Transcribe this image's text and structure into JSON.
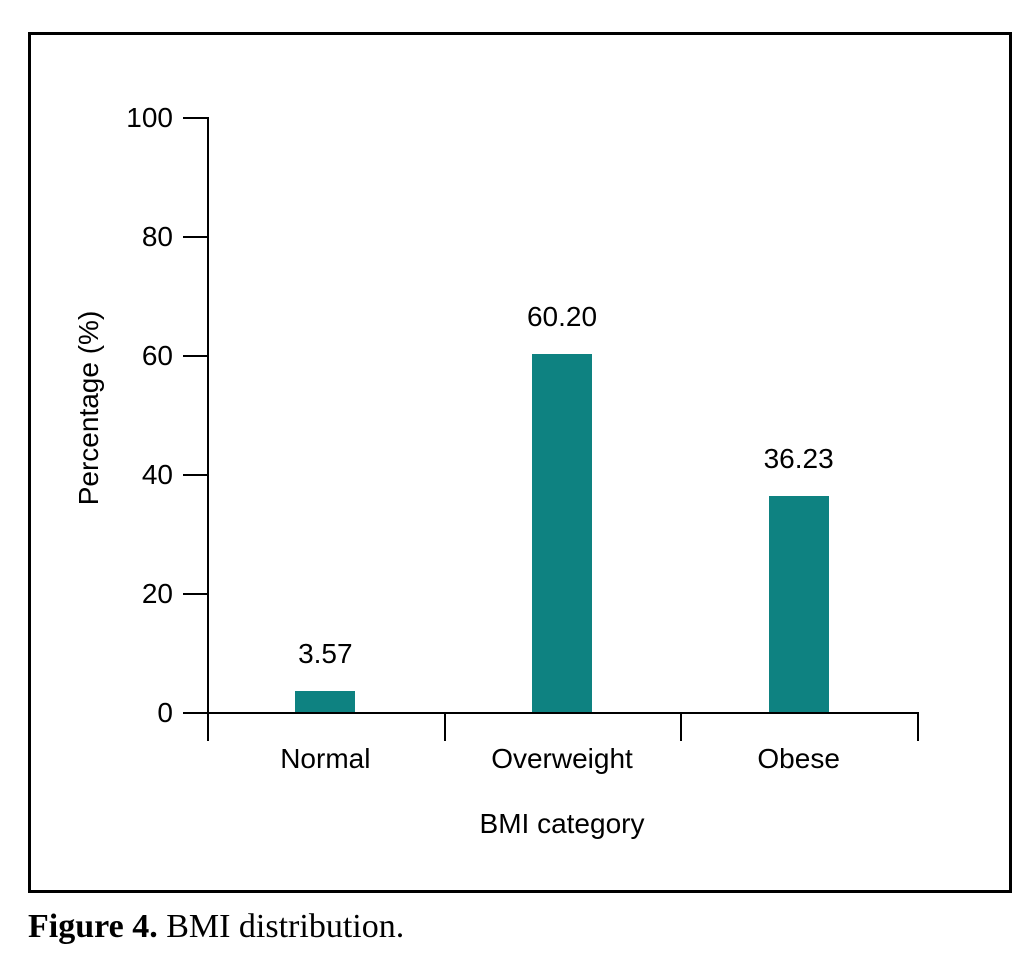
{
  "chart_data": {
    "type": "bar",
    "categories": [
      "Normal",
      "Overweight",
      "Obese"
    ],
    "values": [
      3.57,
      60.2,
      36.23
    ],
    "value_labels": [
      "3.57",
      "60.20",
      "36.23"
    ],
    "title": "",
    "xlabel": "BMI category",
    "ylabel": "Percentage (%)",
    "ylim": [
      0,
      100
    ],
    "yticks": [
      0,
      20,
      40,
      60,
      80,
      100
    ],
    "bar_color": "#0e8281",
    "axis_color": "#000000",
    "grid": false,
    "legend_position": "none"
  },
  "caption": {
    "label": "Figure 4.",
    "text": " BMI distribution."
  }
}
